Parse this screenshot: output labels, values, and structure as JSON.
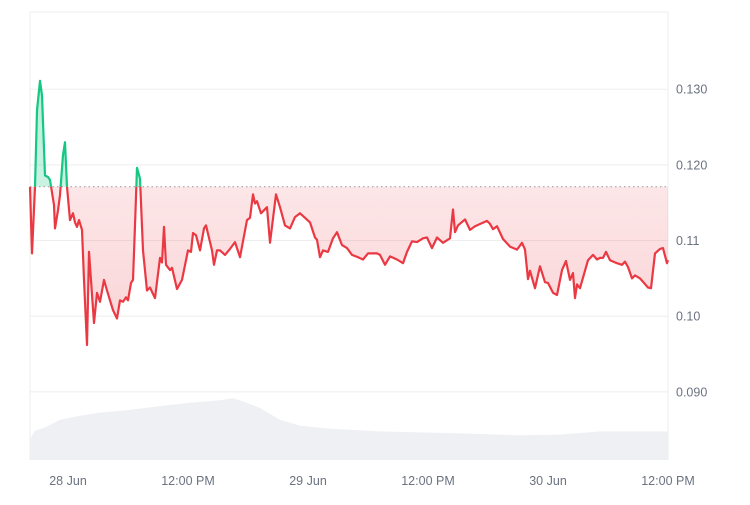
{
  "chart_data": {
    "type": "line",
    "title": "",
    "xlabel": "",
    "ylabel": "",
    "xlim": [
      "06-27 20:12",
      "06-30 12:00"
    ],
    "ylim": [
      0.081,
      0.1402
    ],
    "baseline": 0.1171,
    "grid": true,
    "legend": "none",
    "colors": {
      "up": "#16c784",
      "down": "#ea3943",
      "grid": "#eeeeee",
      "volume": "#eef0f4",
      "axis_text": "#6b7280"
    },
    "y_ticks": [
      {
        "value": 0.13,
        "label": "0.130"
      },
      {
        "value": 0.12,
        "label": "0.120"
      },
      {
        "value": 0.11,
        "label": "0.11"
      },
      {
        "value": 0.1,
        "label": "0.10"
      },
      {
        "value": 0.09,
        "label": "0.090"
      }
    ],
    "x_ticks": [
      {
        "value": "06-28 00:00",
        "label": "28 Jun"
      },
      {
        "value": "06-28 12:00",
        "label": "12:00 PM"
      },
      {
        "value": "06-29 00:00",
        "label": "29 Jun"
      },
      {
        "value": "06-29 12:00",
        "label": "12:00 PM"
      },
      {
        "value": "06-30 00:00",
        "label": "30 Jun"
      },
      {
        "value": "06-30 12:00",
        "label": "12:00 PM"
      }
    ],
    "series": [
      {
        "x": [
          "06-27 20:12",
          "06-27 20:24",
          "06-27 20:42",
          "06-27 20:54",
          "06-27 21:12",
          "06-27 21:24",
          "06-27 21:42",
          "06-27 22:00",
          "06-27 22:12",
          "06-27 22:36",
          "06-27 22:42",
          "06-27 23:00",
          "06-27 23:12",
          "06-27 23:30",
          "06-27 23:42",
          "06-27 23:54",
          "06-28 00:12",
          "06-28 00:30",
          "06-28 00:42",
          "06-28 00:54",
          "06-28 01:06",
          "06-28 01:24",
          "06-28 01:36",
          "06-28 01:54",
          "06-28 02:06",
          "06-28 02:36",
          "06-28 02:54",
          "06-28 03:12",
          "06-28 03:36",
          "06-28 03:54",
          "06-28 04:30",
          "06-28 04:54",
          "06-28 05:12",
          "06-28 05:30",
          "06-28 05:48",
          "06-28 06:00",
          "06-28 06:18",
          "06-28 06:30",
          "06-28 06:42",
          "06-28 06:54",
          "06-28 07:12",
          "06-28 07:30",
          "06-28 07:54",
          "06-28 08:12",
          "06-28 08:42",
          "06-28 09:12",
          "06-28 09:24",
          "06-28 09:36",
          "06-28 09:48",
          "06-28 10:12",
          "06-28 10:24",
          "06-28 10:54",
          "06-28 11:24",
          "06-28 12:00",
          "06-28 12:18",
          "06-28 12:30",
          "06-28 12:48",
          "06-28 13:12",
          "06-28 13:36",
          "06-28 13:48",
          "06-28 14:24",
          "06-28 14:36",
          "06-28 14:54",
          "06-28 15:12",
          "06-28 15:42",
          "06-28 16:12",
          "06-28 16:42",
          "06-28 17:12",
          "06-28 17:54",
          "06-28 18:12",
          "06-28 18:30",
          "06-28 18:42",
          "06-28 18:54",
          "06-28 19:18",
          "06-28 19:54",
          "06-28 20:12",
          "06-28 20:48",
          "06-28 21:12",
          "06-28 21:42",
          "06-28 22:12",
          "06-28 22:42",
          "06-28 23:12",
          "06-28 23:42",
          "06-29 00:12",
          "06-29 00:42",
          "06-29 00:54",
          "06-29 01:12",
          "06-29 01:30",
          "06-29 02:00",
          "06-29 02:30",
          "06-29 02:54",
          "06-29 03:24",
          "06-29 03:54",
          "06-29 04:24",
          "06-29 05:00",
          "06-29 05:30",
          "06-29 06:00",
          "06-29 06:54",
          "06-29 07:12",
          "06-29 07:42",
          "06-29 08:12",
          "06-29 08:54",
          "06-29 09:30",
          "06-29 09:54",
          "06-29 10:24",
          "06-29 10:54",
          "06-29 11:30",
          "06-29 11:54",
          "06-29 12:24",
          "06-29 12:54",
          "06-29 13:30",
          "06-29 14:12",
          "06-29 14:30",
          "06-29 14:42",
          "06-29 15:00",
          "06-29 15:42",
          "06-29 16:12",
          "06-29 16:42",
          "06-29 17:54",
          "06-29 18:12",
          "06-29 18:30",
          "06-29 18:54",
          "06-29 19:30",
          "06-29 20:12",
          "06-29 20:54",
          "06-29 21:24",
          "06-29 21:42",
          "06-29 22:00",
          "06-29 22:12",
          "06-29 22:42",
          "06-29 23:12",
          "06-29 23:42",
          "06-30 00:00",
          "06-30 00:30",
          "06-30 00:54",
          "06-30 01:24",
          "06-30 01:48",
          "06-30 02:12",
          "06-30 02:30",
          "06-30 02:42",
          "06-30 02:54",
          "06-30 03:12",
          "06-30 04:00",
          "06-30 04:30",
          "06-30 04:54",
          "06-30 05:12",
          "06-30 05:30",
          "06-30 05:48",
          "06-30 06:12",
          "06-30 06:54",
          "06-30 07:24",
          "06-30 07:42",
          "06-30 08:00",
          "06-30 08:24",
          "06-30 08:42",
          "06-30 09:12",
          "06-30 10:00",
          "06-30 10:18",
          "06-30 10:42",
          "06-30 11:12",
          "06-30 11:30",
          "06-30 11:54",
          "06-30 12:00"
        ],
        "y": [
          0.1171,
          0.1083,
          0.1171,
          0.1272,
          0.1311,
          0.1292,
          0.1186,
          0.1184,
          0.118,
          0.1147,
          0.1116,
          0.114,
          0.116,
          0.1213,
          0.123,
          0.1171,
          0.1127,
          0.1136,
          0.1124,
          0.1118,
          0.1127,
          0.1114,
          0.1048,
          0.0962,
          0.1085,
          0.0991,
          0.1031,
          0.1019,
          0.1048,
          0.1034,
          0.1008,
          0.0997,
          0.1021,
          0.1019,
          0.1025,
          0.1021,
          0.1044,
          0.1048,
          0.112,
          0.1196,
          0.1182,
          0.1087,
          0.1034,
          0.1038,
          0.1024,
          0.1077,
          0.1071,
          0.1118,
          0.1068,
          0.1061,
          0.1064,
          0.1036,
          0.1048,
          0.1087,
          0.1085,
          0.111,
          0.1107,
          0.1087,
          0.1116,
          0.112,
          0.1087,
          0.1068,
          0.1087,
          0.1087,
          0.1081,
          0.1089,
          0.1098,
          0.1078,
          0.1127,
          0.113,
          0.1161,
          0.1149,
          0.1152,
          0.1136,
          0.1144,
          0.1097,
          0.1161,
          0.1144,
          0.112,
          0.1116,
          0.1131,
          0.1136,
          0.113,
          0.1124,
          0.1104,
          0.1101,
          0.1078,
          0.1087,
          0.1085,
          0.1103,
          0.1111,
          0.1094,
          0.109,
          0.1081,
          0.1078,
          0.1075,
          0.1083,
          0.1083,
          0.1081,
          0.1068,
          0.1079,
          0.1075,
          0.107,
          0.1085,
          0.1099,
          0.1098,
          0.1103,
          0.1104,
          0.109,
          0.1104,
          0.1097,
          0.1103,
          0.1141,
          0.1111,
          0.112,
          0.1128,
          0.1114,
          0.1119,
          0.1126,
          0.1122,
          0.1115,
          0.1119,
          0.1102,
          0.1092,
          0.1088,
          0.1097,
          0.1088,
          0.1049,
          0.106,
          0.1037,
          0.1066,
          0.1045,
          0.1044,
          0.1031,
          0.1028,
          0.1061,
          0.1073,
          0.1048,
          0.1057,
          0.1024,
          0.1042,
          0.1037,
          0.1074,
          0.1081,
          0.1075,
          0.1077,
          0.1077,
          0.1085,
          0.1074,
          0.107,
          0.1068,
          0.1072,
          0.1065,
          0.105,
          0.1054,
          0.105,
          0.1038,
          0.1037,
          0.1083,
          0.1089,
          0.109,
          0.107,
          0.1074
        ]
      }
    ],
    "volume": {
      "relative": true,
      "x": [
        "06-27 20:12",
        "06-27 20:42",
        "06-27 21:42",
        "06-27 23:12",
        "06-28 01:12",
        "06-28 03:12",
        "06-28 06:12",
        "06-28 09:12",
        "06-28 12:12",
        "06-28 15:12",
        "06-28 16:30",
        "06-28 17:42",
        "06-28 19:12",
        "06-28 21:12",
        "06-28 23:12",
        "06-29 02:12",
        "06-29 07:12",
        "06-29 15:12",
        "06-29 21:12",
        "06-30 01:12",
        "06-30 05:12",
        "06-30 12:00"
      ],
      "values": [
        0.33,
        0.45,
        0.5,
        0.62,
        0.68,
        0.73,
        0.77,
        0.83,
        0.88,
        0.92,
        0.95,
        0.89,
        0.8,
        0.62,
        0.53,
        0.48,
        0.44,
        0.41,
        0.38,
        0.39,
        0.44,
        0.44
      ]
    }
  }
}
